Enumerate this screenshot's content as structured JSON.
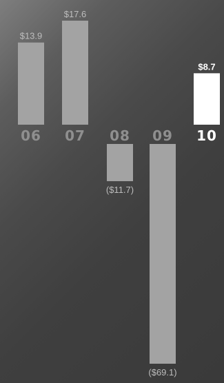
{
  "chart_data": {
    "type": "bar",
    "categories": [
      "06",
      "07",
      "08",
      "09",
      "10"
    ],
    "values": [
      13.9,
      17.6,
      -11.7,
      -69.1,
      8.7
    ],
    "value_labels": [
      "$13.9",
      "$17.6",
      "($11.7)",
      "($69.1)",
      "$8.7"
    ],
    "highlight_index": 4,
    "ylim": [
      -69.1,
      17.6
    ],
    "grid": false,
    "colors": {
      "bar": "#a3a3a3",
      "highlight_bar": "#ffffff",
      "label": "#bdbdbd",
      "category": "#8f8f8f",
      "highlight_text": "#ffffff"
    }
  }
}
